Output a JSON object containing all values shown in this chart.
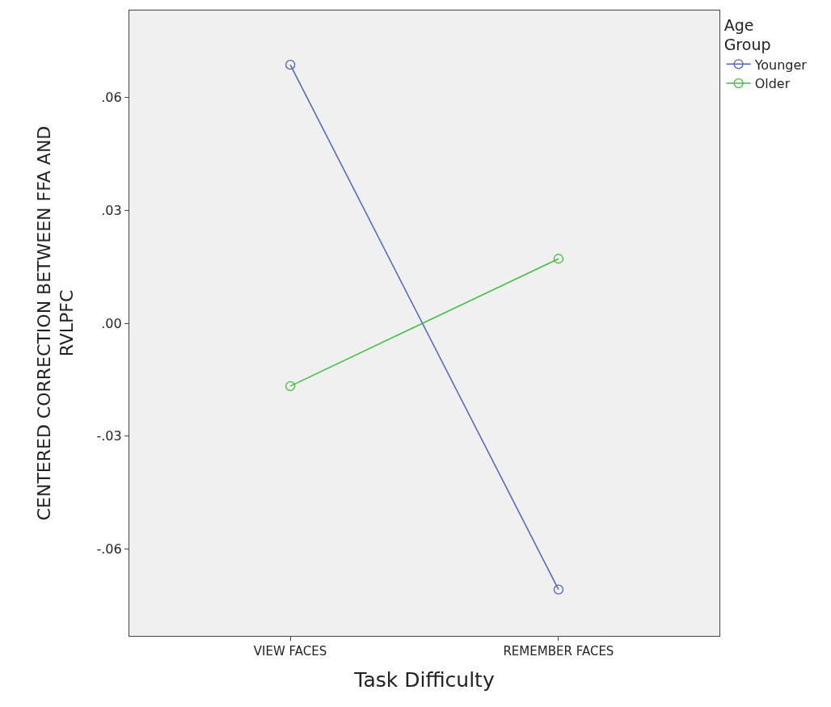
{
  "chart_data": {
    "type": "line",
    "xlabel": "Task Difficulty",
    "ylabel": "CENTERED CORRECTION BETWEEN FFA AND RVLPFC",
    "legend_title": "Age Group",
    "categories": [
      "VIEW FACES",
      "REMEMBER FACES"
    ],
    "series": [
      {
        "name": "Younger",
        "color": "#5064c0",
        "values": [
          0.0686,
          -0.0707
        ]
      },
      {
        "name": "Older",
        "color": "#3cc03c",
        "values": [
          -0.0167,
          0.0171
        ]
      }
    ],
    "ylim": [
      -0.083,
      0.083
    ],
    "yticks": [
      {
        "value": -0.06,
        "label": "-.06"
      },
      {
        "value": -0.03,
        "label": "-.03"
      },
      {
        "value": 0,
        "label": ".00"
      },
      {
        "value": 0.03,
        "label": ".03"
      },
      {
        "value": 0.06,
        "label": ".06"
      }
    ],
    "marker": "circle",
    "line_style": "solid",
    "grid": false,
    "legend": "top right"
  }
}
